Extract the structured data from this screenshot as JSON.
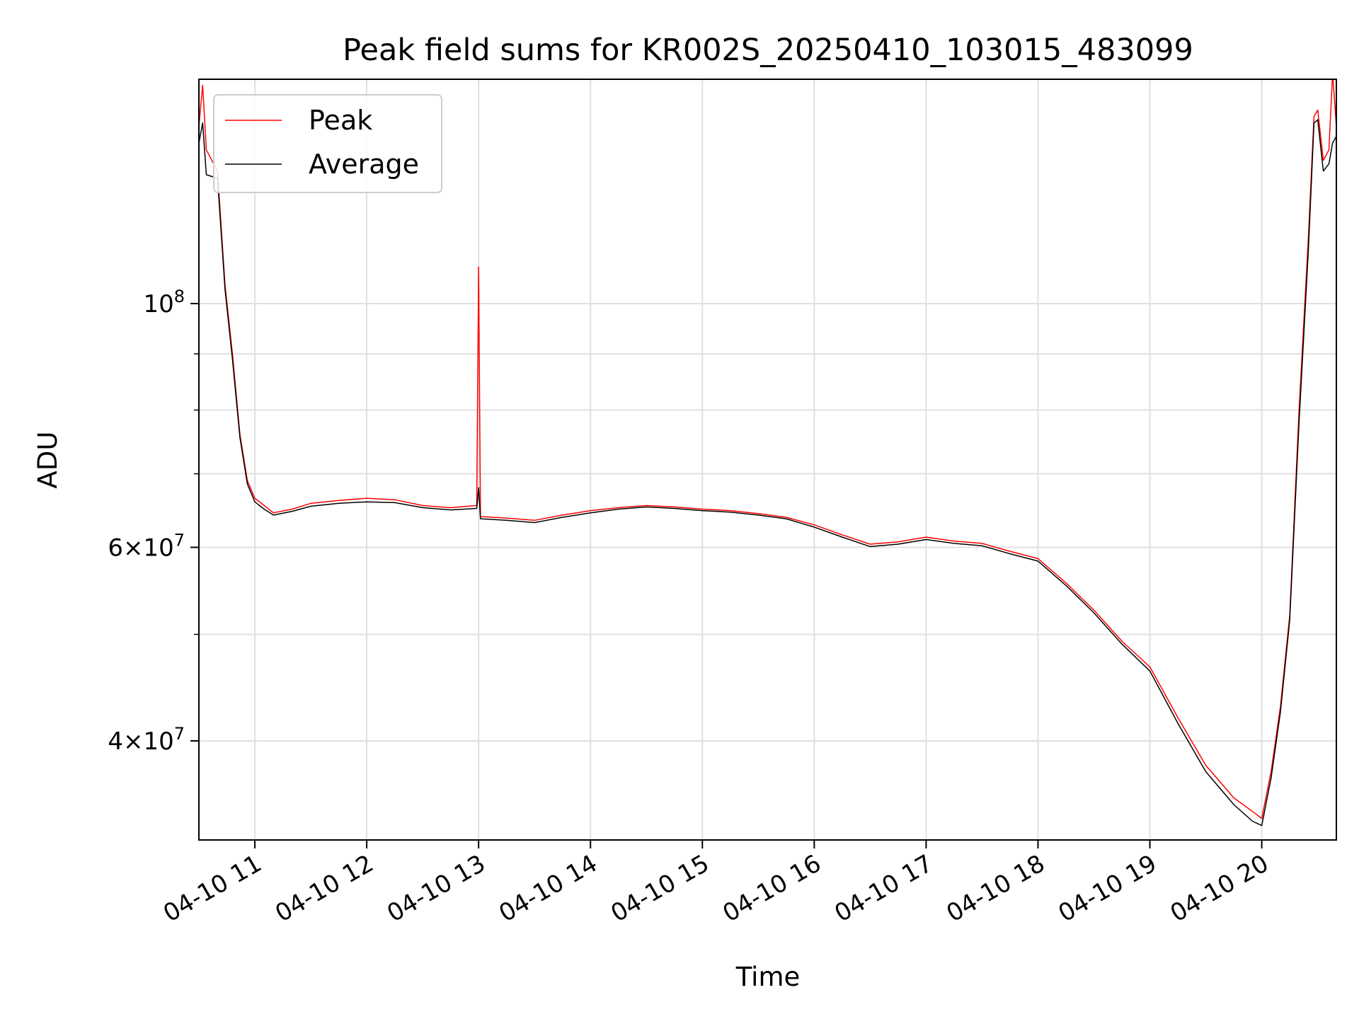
{
  "chart_data": {
    "type": "line",
    "title": "Peak field sums for KR002S_20250410_103015_483099",
    "xlabel": "Time",
    "ylabel": "ADU",
    "yscale": "log",
    "grid": true,
    "legend_position": "top-left",
    "xlim": [
      "2025-04-10 10:30",
      "2025-04-10 20:40"
    ],
    "ylim": [
      32500000,
      160000000
    ],
    "x_tick_labels": [
      "04-10 11",
      "04-10 12",
      "04-10 13",
      "04-10 14",
      "04-10 15",
      "04-10 16",
      "04-10 17",
      "04-10 18",
      "04-10 19",
      "04-10 20"
    ],
    "y_tick_labels": [
      {
        "value": 100000000,
        "base": "10",
        "exp": "8",
        "prefix": ""
      },
      {
        "value": 60000000,
        "base": "10",
        "exp": "7",
        "prefix": "6×"
      },
      {
        "value": 40000000,
        "base": "10",
        "exp": "7",
        "prefix": "4×"
      }
    ],
    "series": [
      {
        "name": "Peak",
        "color": "#ff0000",
        "x": [
          "2025-04-10 10:30",
          "2025-04-10 10:32",
          "2025-04-10 10:34",
          "2025-04-10 10:40",
          "2025-04-10 10:44",
          "2025-04-10 10:48",
          "2025-04-10 10:52",
          "2025-04-10 10:56",
          "2025-04-10 11:00",
          "2025-04-10 11:05",
          "2025-04-10 11:10",
          "2025-04-10 11:20",
          "2025-04-10 11:30",
          "2025-04-10 11:45",
          "2025-04-10 12:00",
          "2025-04-10 12:15",
          "2025-04-10 12:30",
          "2025-04-10 12:45",
          "2025-04-10 12:59",
          "2025-04-10 13:00",
          "2025-04-10 13:01",
          "2025-04-10 13:15",
          "2025-04-10 13:30",
          "2025-04-10 13:45",
          "2025-04-10 14:00",
          "2025-04-10 14:15",
          "2025-04-10 14:30",
          "2025-04-10 14:45",
          "2025-04-10 15:00",
          "2025-04-10 15:15",
          "2025-04-10 15:30",
          "2025-04-10 15:45",
          "2025-04-10 16:00",
          "2025-04-10 16:15",
          "2025-04-10 16:30",
          "2025-04-10 16:45",
          "2025-04-10 17:00",
          "2025-04-10 17:15",
          "2025-04-10 17:30",
          "2025-04-10 17:45",
          "2025-04-10 18:00",
          "2025-04-10 18:15",
          "2025-04-10 18:30",
          "2025-04-10 18:45",
          "2025-04-10 19:00",
          "2025-04-10 19:15",
          "2025-04-10 19:30",
          "2025-04-10 19:45",
          "2025-04-10 19:55",
          "2025-04-10 20:00",
          "2025-04-10 20:05",
          "2025-04-10 20:10",
          "2025-04-10 20:15",
          "2025-04-10 20:20",
          "2025-04-10 20:25",
          "2025-04-10 20:28",
          "2025-04-10 20:30",
          "2025-04-10 20:33",
          "2025-04-10 20:36",
          "2025-04-10 20:38",
          "2025-04-10 20:40"
        ],
        "y": [
          145000000,
          158000000,
          138000000,
          132000000,
          104000000,
          90000000,
          76000000,
          69000000,
          66500000,
          65500000,
          64500000,
          65000000,
          65800000,
          66200000,
          66500000,
          66300000,
          65500000,
          65200000,
          65500000,
          108000000,
          64000000,
          63800000,
          63500000,
          64200000,
          64800000,
          65200000,
          65500000,
          65300000,
          65000000,
          64800000,
          64400000,
          63900000,
          62900000,
          61600000,
          60400000,
          60700000,
          61300000,
          60800000,
          60500000,
          59500000,
          58600000,
          55700000,
          52600000,
          49300000,
          46700000,
          42000000,
          38000000,
          35500000,
          34500000,
          34000000,
          37500000,
          43000000,
          52000000,
          80000000,
          115000000,
          148000000,
          150000000,
          135000000,
          138000000,
          162000000,
          145000000
        ]
      },
      {
        "name": "Average",
        "color": "#000000",
        "x": [
          "2025-04-10 10:30",
          "2025-04-10 10:32",
          "2025-04-10 10:34",
          "2025-04-10 10:40",
          "2025-04-10 10:44",
          "2025-04-10 10:48",
          "2025-04-10 10:52",
          "2025-04-10 10:56",
          "2025-04-10 11:00",
          "2025-04-10 11:05",
          "2025-04-10 11:10",
          "2025-04-10 11:20",
          "2025-04-10 11:30",
          "2025-04-10 11:45",
          "2025-04-10 12:00",
          "2025-04-10 12:15",
          "2025-04-10 12:30",
          "2025-04-10 12:45",
          "2025-04-10 12:59",
          "2025-04-10 13:00",
          "2025-04-10 13:01",
          "2025-04-10 13:15",
          "2025-04-10 13:30",
          "2025-04-10 13:45",
          "2025-04-10 14:00",
          "2025-04-10 14:15",
          "2025-04-10 14:30",
          "2025-04-10 14:45",
          "2025-04-10 15:00",
          "2025-04-10 15:15",
          "2025-04-10 15:30",
          "2025-04-10 15:45",
          "2025-04-10 16:00",
          "2025-04-10 16:15",
          "2025-04-10 16:30",
          "2025-04-10 16:45",
          "2025-04-10 17:00",
          "2025-04-10 17:15",
          "2025-04-10 17:30",
          "2025-04-10 17:45",
          "2025-04-10 18:00",
          "2025-04-10 18:15",
          "2025-04-10 18:30",
          "2025-04-10 18:45",
          "2025-04-10 19:00",
          "2025-04-10 19:15",
          "2025-04-10 19:30",
          "2025-04-10 19:45",
          "2025-04-10 19:55",
          "2025-04-10 20:00",
          "2025-04-10 20:05",
          "2025-04-10 20:10",
          "2025-04-10 20:15",
          "2025-04-10 20:20",
          "2025-04-10 20:25",
          "2025-04-10 20:28",
          "2025-04-10 20:30",
          "2025-04-10 20:33",
          "2025-04-10 20:36",
          "2025-04-10 20:38",
          "2025-04-10 20:40"
        ],
        "y": [
          140000000,
          146000000,
          131000000,
          130000000,
          103000000,
          89000000,
          75500000,
          68500000,
          66000000,
          65000000,
          64200000,
          64700000,
          65400000,
          65800000,
          66000000,
          65900000,
          65200000,
          64900000,
          65100000,
          68000000,
          63700000,
          63500000,
          63200000,
          63900000,
          64500000,
          65000000,
          65300000,
          65100000,
          64800000,
          64600000,
          64200000,
          63700000,
          62600000,
          61300000,
          60100000,
          60400000,
          61000000,
          60500000,
          60200000,
          59200000,
          58300000,
          55400000,
          52300000,
          49000000,
          46300000,
          41500000,
          37500000,
          35000000,
          33800000,
          33500000,
          37000000,
          42500000,
          51500000,
          78000000,
          112000000,
          146000000,
          147000000,
          132000000,
          134000000,
          140000000,
          142000000
        ]
      }
    ]
  }
}
